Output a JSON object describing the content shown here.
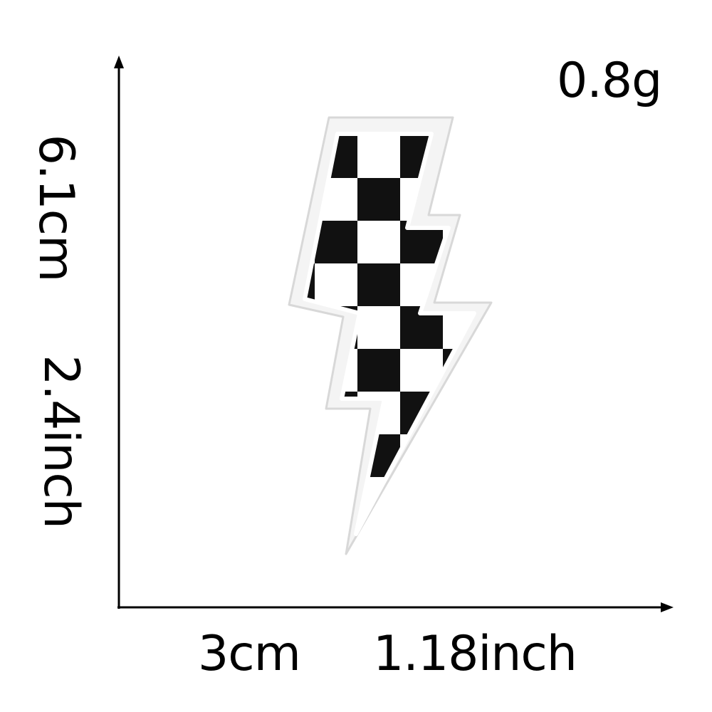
{
  "weight": "0.8g",
  "height": {
    "metric": "6.1cm",
    "imperial": "2.4inch"
  },
  "width": {
    "metric": "3cm",
    "imperial": "1.18inch"
  },
  "colors": {
    "background": "#ffffff",
    "ink": "#000000",
    "patch_border": "#f2f2f2"
  },
  "product": {
    "icon": "checkered-lightning-bolt-patch"
  }
}
